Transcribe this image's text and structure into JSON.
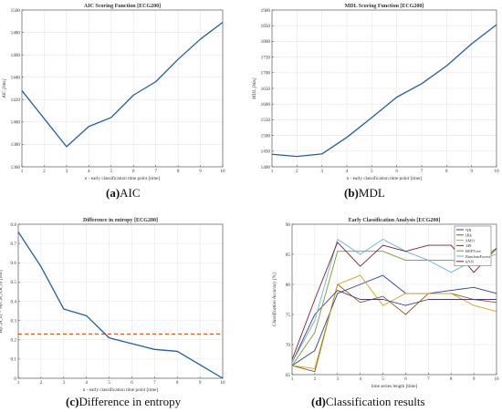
{
  "captions": [
    {
      "letter": "(a)",
      "text": "AIC"
    },
    {
      "letter": "(b)",
      "text": "MDL"
    },
    {
      "letter": "(c)",
      "text": "Difference in entropy"
    },
    {
      "letter": "(d)",
      "text": "Classification results"
    }
  ],
  "colors": {
    "main_line": "#1f5fa8",
    "threshold": "#d95319",
    "grid": "#e6e6e6",
    "axis": "#444444"
  },
  "chart_data": [
    {
      "type": "line",
      "title": "AIC Scoring Function [ECG200]",
      "xlabel": "n - early classification time point [time]",
      "ylabel": "AIC [bits]",
      "xlim": [
        1,
        10
      ],
      "ylim": [
        1360,
        1500
      ],
      "xticks": [
        "1",
        "2",
        "3",
        "4",
        "5",
        "6",
        "7",
        "8",
        "9",
        "10"
      ],
      "yticks": [
        "1360",
        "1380",
        "1400",
        "1420",
        "1440",
        "1460",
        "1480",
        "1500"
      ],
      "grid": true,
      "x": [
        1,
        2,
        3,
        4,
        5,
        6,
        7,
        8,
        9,
        10
      ],
      "series": [
        {
          "values": [
            1428,
            1403,
            1378,
            1396,
            1404,
            1424,
            1436,
            1456,
            1474,
            1489
          ]
        }
      ]
    },
    {
      "type": "line",
      "title": "MDL Scoring Function [ECG200]",
      "xlabel": "n - early classification time point [time]",
      "ylabel": "MDL [bits]",
      "xlim": [
        1,
        10
      ],
      "ylim": [
        1400,
        1900
      ],
      "xticks": [
        "1",
        "2",
        "3",
        "4",
        "5",
        "6",
        "7",
        "8",
        "9",
        "10"
      ],
      "yticks": [
        "1400",
        "1450",
        "1500",
        "1550",
        "1600",
        "1650",
        "1700",
        "1750",
        "1800",
        "1850",
        "1900"
      ],
      "grid": true,
      "x": [
        1,
        2,
        3,
        4,
        5,
        6,
        7,
        8,
        9,
        10
      ],
      "series": [
        {
          "values": [
            1440,
            1433,
            1441,
            1494,
            1557,
            1622,
            1665,
            1722,
            1792,
            1853
          ]
        }
      ]
    },
    {
      "type": "line",
      "title": "Difference in entropy [ECG200]",
      "xlabel": "n - early classification time point [time]",
      "ylabel": "H(C|A_n) − H(C|A_n,R_n) [bits]",
      "xlim": [
        1,
        10
      ],
      "ylim": [
        0,
        0.8
      ],
      "xticks": [
        "1",
        "2",
        "3",
        "4",
        "5",
        "6",
        "7",
        "8",
        "9",
        "10"
      ],
      "yticks": [
        "0",
        "0.1",
        "0.2",
        "0.3",
        "0.4",
        "0.5",
        "0.6",
        "0.7",
        "0.8"
      ],
      "grid": true,
      "x": [
        1,
        2,
        3,
        4,
        5,
        6,
        7,
        8,
        9,
        10
      ],
      "series": [
        {
          "values": [
            0.76,
            0.58,
            0.36,
            0.325,
            0.21,
            0.18,
            0.15,
            0.14,
            0.07,
            0.0
          ]
        }
      ],
      "threshold": 0.23
    },
    {
      "type": "line",
      "title": "Early Classification Analysis [ECG200]",
      "xlabel": "time series length [time]",
      "ylabel": "Classification Accuracy [%]",
      "xlim": [
        1,
        10
      ],
      "ylim": [
        65,
        90
      ],
      "xticks": [
        "1",
        "2",
        "3",
        "4",
        "5",
        "6",
        "7",
        "8",
        "9",
        "10"
      ],
      "yticks": [
        "65",
        "70",
        "75",
        "80",
        "85",
        "90"
      ],
      "grid": true,
      "legend_position": "top-right",
      "x": [
        1,
        2,
        3,
        4,
        5,
        6,
        7,
        8,
        9,
        10
      ],
      "series": [
        {
          "name": "NB",
          "color": "#2b3fa0",
          "values": [
            66.5,
            69,
            78.5,
            80,
            81.5,
            78.5,
            78.5,
            79,
            79.5,
            78.5
          ]
        },
        {
          "name": "IBk",
          "color": "#8b5a14",
          "values": [
            66.5,
            65.5,
            80,
            77,
            78,
            75,
            78.5,
            78.5,
            77.5,
            77
          ]
        },
        {
          "name": "SMO",
          "color": "#d4a017",
          "values": [
            66.5,
            66,
            80,
            81.5,
            76.5,
            78.5,
            78.5,
            78.5,
            76.5,
            75.5
          ]
        },
        {
          "name": "J48",
          "color": "#4a3a78",
          "values": [
            67,
            75,
            79,
            77.5,
            77.5,
            76.5,
            77.5,
            77.5,
            77.5,
            77.5
          ]
        },
        {
          "name": "REPTree",
          "color": "#7a9a2e",
          "values": [
            66.5,
            72,
            85.5,
            85.5,
            85.5,
            84,
            84,
            84,
            83.5,
            86
          ]
        },
        {
          "name": "RandomForest",
          "color": "#6ab0e6",
          "values": [
            67,
            74,
            87.5,
            85,
            87.5,
            85.5,
            84,
            82,
            84,
            85
          ]
        },
        {
          "name": "kNN",
          "color": "#7a2030",
          "values": [
            67.5,
            77.5,
            87,
            83,
            86.5,
            85.5,
            86.5,
            86.5,
            82,
            86
          ]
        }
      ]
    }
  ]
}
